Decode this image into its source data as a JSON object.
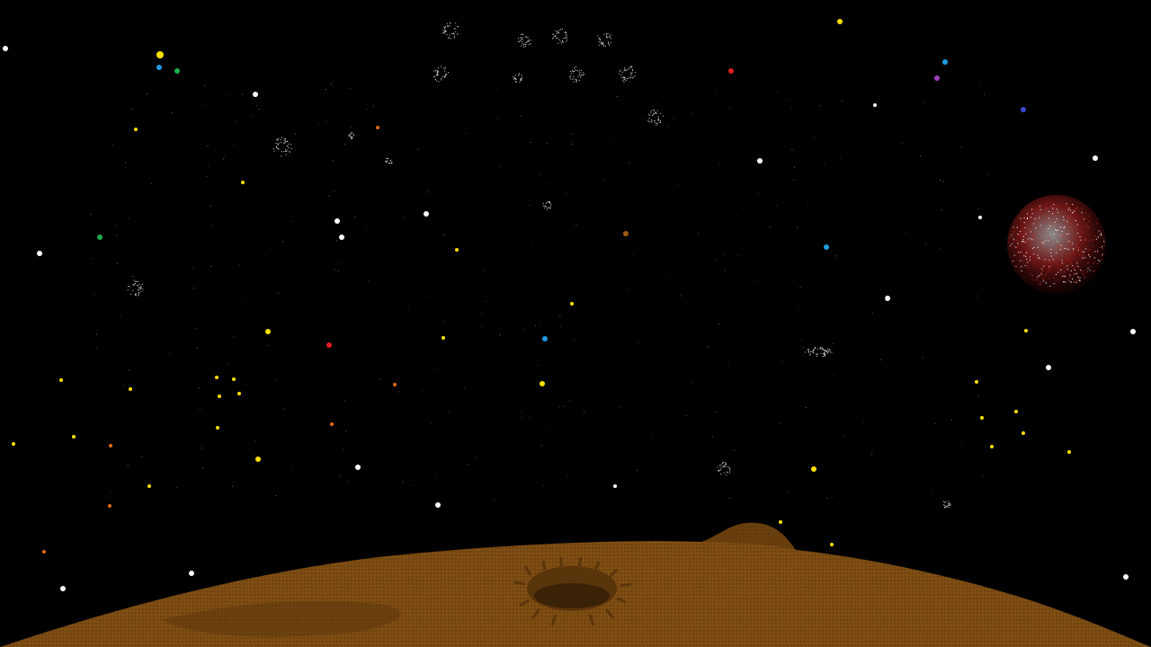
{
  "scene": {
    "type": "space-sandbox",
    "background_color": "#000000",
    "planet_surface_color": "#7a4a12",
    "planet_shadow_color": "#4e2e08",
    "crater_color": "#3a2206",
    "distant_planet_colors": [
      "#c62828",
      "#ffffff"
    ],
    "star_colors": {
      "white": "#ffffff",
      "yellow": "#ffe000",
      "red": "#e01f1f",
      "blue": "#1e9be0",
      "green": "#1fae4a",
      "purple": "#a040c0",
      "indigo": "#3a4ad0",
      "orange": "#e06a1a",
      "brown": "#a05a10"
    }
  }
}
